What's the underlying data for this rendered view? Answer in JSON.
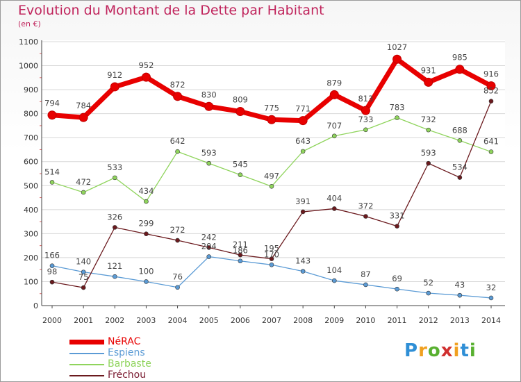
{
  "title": "Evolution du Montant de la Dette par Habitant",
  "subtitle": "(en €)",
  "logo": {
    "text": "Proxiti",
    "colors": [
      "#2f8fd6",
      "#f0a020",
      "#58b030",
      "#d03030",
      "#f0a020",
      "#2f8fd6",
      "#58b030"
    ]
  },
  "chart_data": {
    "type": "line",
    "x": [
      "2000",
      "2001",
      "2002",
      "2003",
      "2004",
      "2005",
      "2006",
      "2007",
      "2008",
      "2009",
      "2010",
      "2011",
      "2012",
      "2013",
      "2014"
    ],
    "yticks": [
      0,
      100,
      200,
      300,
      400,
      500,
      600,
      700,
      800,
      900,
      1000,
      1100
    ],
    "ylim": [
      0,
      1100
    ],
    "grid": true,
    "legend_position": "bottom-left",
    "series": [
      {
        "name": "NéRAC",
        "color": "#e80000",
        "width": 7,
        "values": [
          794,
          784,
          912,
          952,
          872,
          830,
          809,
          775,
          771,
          879,
          813,
          1027,
          931,
          985,
          916
        ]
      },
      {
        "name": "Espiens",
        "color": "#5b9bd5",
        "width": 1.3,
        "values": [
          166,
          140,
          121,
          100,
          76,
          204,
          186,
          170,
          143,
          104,
          87,
          69,
          52,
          43,
          32
        ]
      },
      {
        "name": "Barbaste",
        "color": "#8fd45c",
        "width": 1.3,
        "values": [
          514,
          472,
          533,
          434,
          642,
          593,
          545,
          497,
          643,
          707,
          733,
          783,
          732,
          688,
          641
        ]
      },
      {
        "name": "Fréchou",
        "color": "#6b1a1e",
        "width": 1.3,
        "values": [
          98,
          75,
          326,
          299,
          272,
          242,
          211,
          195,
          391,
          404,
          372,
          331,
          593,
          534,
          852
        ]
      }
    ]
  }
}
